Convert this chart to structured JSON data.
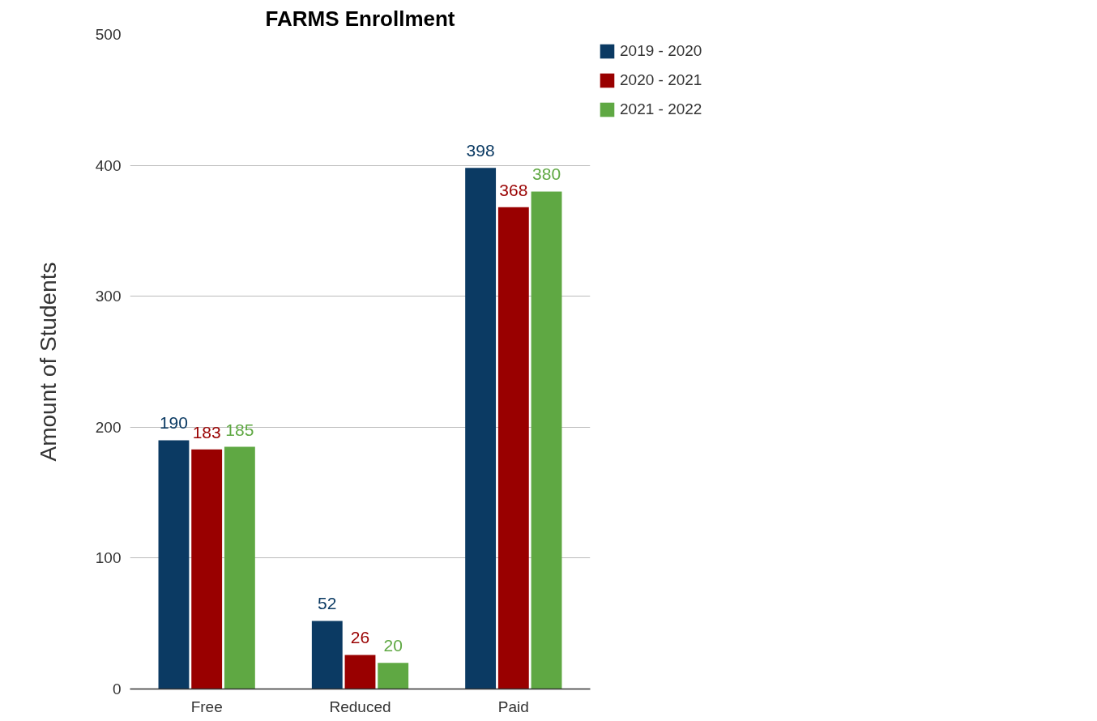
{
  "chart_data": {
    "type": "bar",
    "title": "FARMS Enrollment",
    "ylabel": "Amount of Students",
    "categories": [
      "Free",
      "Reduced",
      "Paid"
    ],
    "series": [
      {
        "name": "2019 - 2020",
        "color": "#0b3a63",
        "values": [
          190,
          52,
          398
        ]
      },
      {
        "name": "2020 - 2021",
        "color": "#990000",
        "values": [
          183,
          26,
          368
        ]
      },
      {
        "name": "2021 - 2022",
        "color": "#5fa843",
        "values": [
          185,
          20,
          380
        ]
      }
    ],
    "ylim": [
      0,
      500
    ],
    "yticks": [
      0,
      100,
      200,
      300,
      400,
      500
    ],
    "grid": "y",
    "legend": "top right",
    "data_labels": true
  }
}
